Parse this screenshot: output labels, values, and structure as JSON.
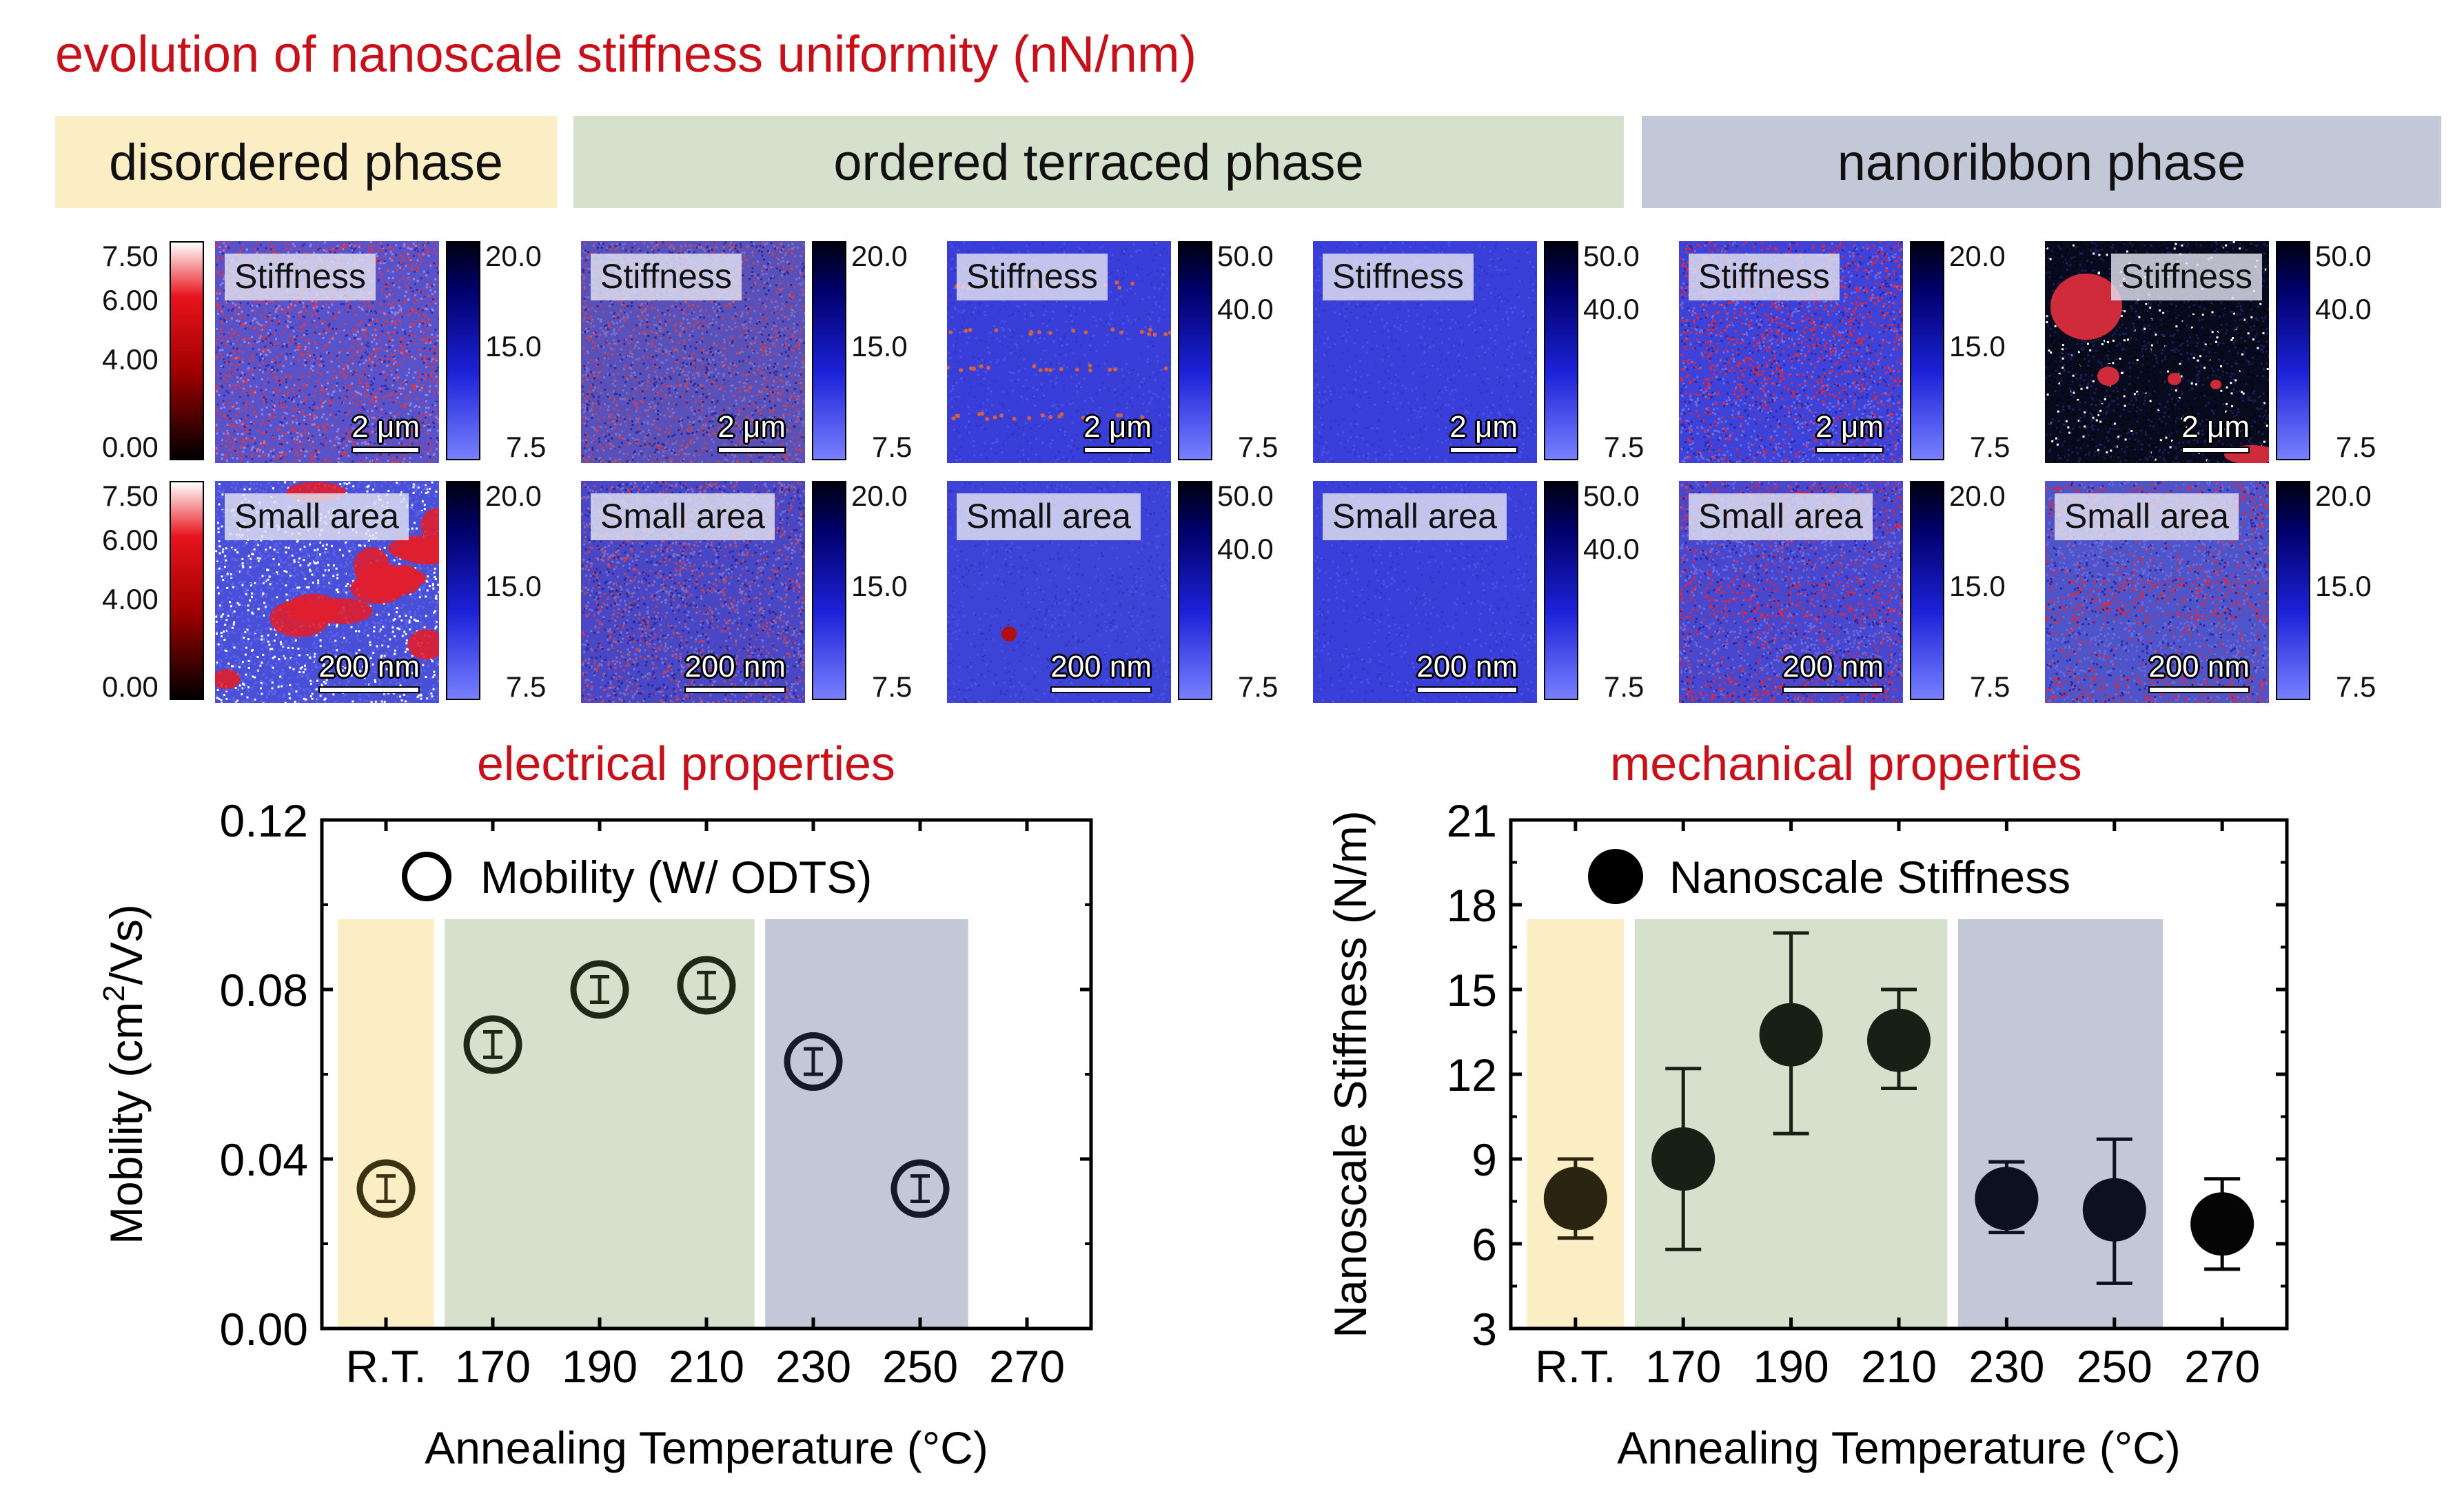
{
  "main_title": "evolution of nanoscale stiffness uniformity (nN/nm)",
  "phases": [
    {
      "label": "disordered phase",
      "color": "#fbedc4"
    },
    {
      "label": "ordered terraced phase",
      "color": "#d5e1cd"
    },
    {
      "label": "nanoribbon phase",
      "color": "#c3c8d8"
    }
  ],
  "red_colorbar": {
    "ticks": [
      "7.50",
      "6.00",
      "4.00",
      "0.00"
    ]
  },
  "afm_panels": [
    {
      "label": "Stiffness",
      "scale": "2 μm",
      "cbar_ticks": [
        "20.0",
        "15.0",
        "7.5"
      ],
      "style": "red-dense"
    },
    {
      "label": "Stiffness",
      "scale": "2 μm",
      "cbar_ticks": [
        "20.0",
        "15.0",
        "7.5"
      ],
      "style": "mixed"
    },
    {
      "label": "Stiffness",
      "scale": "2 μm",
      "cbar_ticks": [
        "50.0",
        "40.0",
        "7.5"
      ],
      "style": "blue-bands"
    },
    {
      "label": "Stiffness",
      "scale": "2 μm",
      "cbar_ticks": [
        "50.0",
        "40.0",
        "7.5"
      ],
      "style": "blue-plain"
    },
    {
      "label": "Stiffness",
      "scale": "2 μm",
      "cbar_ticks": [
        "20.0",
        "15.0",
        "7.5"
      ],
      "style": "red-clusters"
    },
    {
      "label": "Stiffness",
      "scale": "2 μm",
      "cbar_ticks": [
        "50.0",
        "40.0",
        "7.5"
      ],
      "style": "dark-ribbons"
    },
    {
      "label": "Small area",
      "scale": "200 nm",
      "cbar_ticks": [
        "20.0",
        "15.0",
        "7.5"
      ],
      "style": "blobs"
    },
    {
      "label": "Small area",
      "scale": "200 nm",
      "cbar_ticks": [
        "20.0",
        "15.0",
        "7.5"
      ],
      "style": "mixed-fine"
    },
    {
      "label": "Small area",
      "scale": "200 nm",
      "cbar_ticks": [
        "50.0",
        "40.0",
        "7.5"
      ],
      "style": "blue-spot"
    },
    {
      "label": "Small area",
      "scale": "200 nm",
      "cbar_ticks": [
        "50.0",
        "40.0",
        "7.5"
      ],
      "style": "blue-plain"
    },
    {
      "label": "Small area",
      "scale": "200 nm",
      "cbar_ticks": [
        "20.0",
        "15.0",
        "7.5"
      ],
      "style": "red-bands"
    },
    {
      "label": "Small area",
      "scale": "200 nm",
      "cbar_ticks": [
        "20.0",
        "15.0",
        "7.5"
      ],
      "style": "red-bands2"
    }
  ],
  "chart_data": [
    {
      "type": "scatter",
      "title": "electrical properties",
      "xlabel": "Annealing Temperature (°C)",
      "ylabel": "Mobility (cm²/Vs)",
      "ylabel_main": "Mobility (cm",
      "ylabel_sup": "2",
      "ylabel_tail": "/Vs)",
      "categories": [
        "R.T.",
        "170",
        "190",
        "210",
        "230",
        "250",
        "270"
      ],
      "ylim": [
        0,
        0.12
      ],
      "yticks": [
        "0.00",
        "0.04",
        "0.08",
        "0.12"
      ],
      "yticks_values": [
        0,
        0.04,
        0.08,
        0.12
      ],
      "legend": "Mobility (W/ ODTS)",
      "marker": "open-circle",
      "series": [
        {
          "name": "Mobility (W/ ODTS)",
          "values": [
            0.033,
            0.067,
            0.08,
            0.081,
            0.063,
            0.033,
            null
          ],
          "err": [
            0.003,
            0.003,
            0.003,
            0.003,
            0.003,
            0.003,
            null
          ],
          "colors": [
            "#3a3212",
            "#1d2817",
            "#1d2817",
            "#1d2817",
            "#141a2a",
            "#141a2a",
            null
          ]
        }
      ],
      "shading": [
        {
          "from": "R.T.",
          "to": "R.T.",
          "color": "#fbedc4"
        },
        {
          "from": "170",
          "to": "210",
          "color": "#d5e1cd"
        },
        {
          "from": "230",
          "to": "250",
          "color": "#c3c8d8"
        }
      ]
    },
    {
      "type": "scatter",
      "title": "mechanical properties",
      "xlabel": "Annealing Temperature (°C)",
      "ylabel": "Nanoscale Stiffness (N/m)",
      "categories": [
        "R.T.",
        "170",
        "190",
        "210",
        "230",
        "250",
        "270"
      ],
      "ylim": [
        3,
        21
      ],
      "yticks": [
        "3",
        "6",
        "9",
        "12",
        "15",
        "18",
        "21"
      ],
      "yticks_values": [
        3,
        6,
        9,
        12,
        15,
        18,
        21
      ],
      "legend": "Nanoscale Stiffness",
      "marker": "filled-circle",
      "series": [
        {
          "name": "Nanoscale Stiffness",
          "values": [
            7.6,
            9.0,
            13.4,
            13.2,
            7.6,
            7.2,
            6.7
          ],
          "err_hi": [
            9.0,
            12.2,
            17.0,
            15.0,
            8.9,
            9.7,
            8.3
          ],
          "err_lo": [
            6.2,
            5.8,
            9.9,
            11.5,
            6.4,
            4.6,
            5.1
          ],
          "colors": [
            "#2a2410",
            "#162014",
            "#162014",
            "#162014",
            "#0c1020",
            "#0c1020",
            "#050505"
          ]
        }
      ],
      "shading": [
        {
          "from": "R.T.",
          "to": "R.T.",
          "color": "#fbedc4"
        },
        {
          "from": "170",
          "to": "210",
          "color": "#d5e1cd"
        },
        {
          "from": "230",
          "to": "250",
          "color": "#c3c8d8"
        }
      ]
    }
  ]
}
